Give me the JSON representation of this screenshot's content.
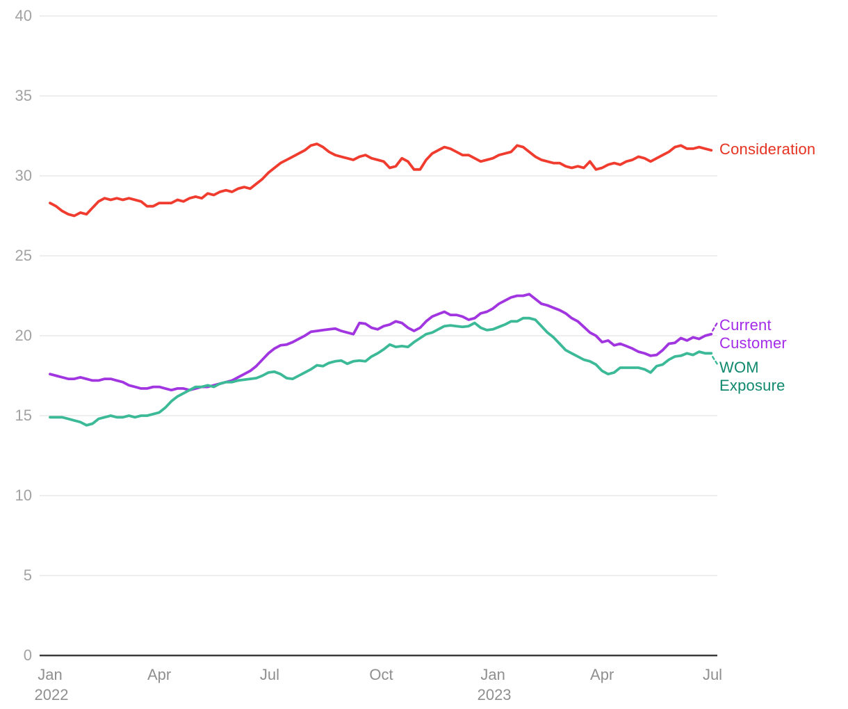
{
  "chart_data": {
    "type": "line",
    "title": "",
    "x_axis": {
      "start": "Jan 2022",
      "end": "Jul 2023",
      "total_days": 546,
      "ticks": [
        {
          "label": "Jan",
          "year": "2022",
          "day": 0
        },
        {
          "label": "Apr",
          "year": "",
          "day": 90
        },
        {
          "label": "Jul",
          "year": "",
          "day": 181
        },
        {
          "label": "Oct",
          "year": "",
          "day": 273
        },
        {
          "label": "Jan",
          "year": "2023",
          "day": 365
        },
        {
          "label": "Apr",
          "year": "",
          "day": 455
        },
        {
          "label": "Jul",
          "year": "",
          "day": 546
        }
      ]
    },
    "y_axis": {
      "min": 0,
      "max": 40,
      "ticks": [
        0,
        5,
        10,
        15,
        20,
        25,
        30,
        35,
        40
      ]
    },
    "grid": "horizontal",
    "sample_interval_days": 5,
    "series": [
      {
        "name": "Consideration",
        "line_color": "#f03c2e",
        "label_color": "#e63222",
        "values": [
          28.3,
          28.1,
          27.8,
          27.6,
          27.5,
          27.7,
          27.6,
          28.0,
          28.4,
          28.6,
          28.5,
          28.6,
          28.5,
          28.6,
          28.5,
          28.4,
          28.1,
          28.1,
          28.3,
          28.3,
          28.3,
          28.5,
          28.4,
          28.6,
          28.7,
          28.6,
          28.9,
          28.8,
          29.0,
          29.1,
          29.0,
          29.2,
          29.3,
          29.2,
          29.5,
          29.8,
          30.2,
          30.5,
          30.8,
          31.0,
          31.2,
          31.4,
          31.6,
          31.9,
          32.0,
          31.8,
          31.5,
          31.3,
          31.2,
          31.1,
          31.0,
          31.2,
          31.3,
          31.1,
          31.0,
          30.9,
          30.5,
          30.6,
          31.1,
          30.9,
          30.4,
          30.4,
          31.0,
          31.4,
          31.6,
          31.8,
          31.7,
          31.5,
          31.3,
          31.3,
          31.1,
          30.9,
          31.0,
          31.1,
          31.3,
          31.4,
          31.5,
          31.9,
          31.8,
          31.5,
          31.2,
          31.0,
          30.9,
          30.8,
          30.8,
          30.6,
          30.5,
          30.6,
          30.5,
          30.9,
          30.4,
          30.5,
          30.7,
          30.8,
          30.7,
          30.9,
          31.0,
          31.2,
          31.1,
          30.9,
          31.1,
          31.3,
          31.5,
          31.8,
          31.9,
          31.7,
          31.7,
          31.8,
          31.7,
          31.6
        ]
      },
      {
        "name": "Current Customer",
        "line_color": "#a135e0",
        "label_color": "#a32ce8",
        "values": [
          17.6,
          17.5,
          17.4,
          17.3,
          17.3,
          17.4,
          17.3,
          17.2,
          17.2,
          17.3,
          17.3,
          17.2,
          17.1,
          16.9,
          16.8,
          16.7,
          16.7,
          16.8,
          16.8,
          16.7,
          16.6,
          16.7,
          16.7,
          16.6,
          16.7,
          16.8,
          16.8,
          16.9,
          17.0,
          17.1,
          17.2,
          17.4,
          17.6,
          17.8,
          18.1,
          18.5,
          18.9,
          19.2,
          19.4,
          19.45,
          19.6,
          19.8,
          20.0,
          20.25,
          20.3,
          20.35,
          20.4,
          20.45,
          20.3,
          20.2,
          20.1,
          20.8,
          20.75,
          20.5,
          20.4,
          20.6,
          20.7,
          20.9,
          20.8,
          20.5,
          20.3,
          20.5,
          20.9,
          21.2,
          21.35,
          21.5,
          21.3,
          21.3,
          21.2,
          21.0,
          21.1,
          21.4,
          21.5,
          21.7,
          22.0,
          22.2,
          22.4,
          22.5,
          22.5,
          22.6,
          22.3,
          22.0,
          21.9,
          21.75,
          21.6,
          21.4,
          21.1,
          20.9,
          20.55,
          20.2,
          20.0,
          19.6,
          19.7,
          19.4,
          19.5,
          19.35,
          19.2,
          19.0,
          18.9,
          18.75,
          18.8,
          19.1,
          19.5,
          19.55,
          19.85,
          19.7,
          19.9,
          19.8,
          20.0,
          20.1
        ]
      },
      {
        "name": "WOM Exposure",
        "line_color": "#3cba98",
        "label_color": "#10896e",
        "values": [
          14.9,
          14.9,
          14.9,
          14.8,
          14.7,
          14.6,
          14.4,
          14.5,
          14.8,
          14.9,
          15.0,
          14.9,
          14.9,
          15.0,
          14.9,
          15.0,
          15.0,
          15.1,
          15.2,
          15.5,
          15.9,
          16.2,
          16.4,
          16.6,
          16.8,
          16.8,
          16.9,
          16.8,
          17.0,
          17.1,
          17.1,
          17.2,
          17.25,
          17.3,
          17.35,
          17.5,
          17.7,
          17.75,
          17.6,
          17.35,
          17.3,
          17.5,
          17.7,
          17.9,
          18.15,
          18.1,
          18.3,
          18.4,
          18.45,
          18.25,
          18.4,
          18.45,
          18.4,
          18.7,
          18.9,
          19.15,
          19.45,
          19.3,
          19.35,
          19.3,
          19.6,
          19.85,
          20.1,
          20.2,
          20.4,
          20.6,
          20.65,
          20.6,
          20.55,
          20.6,
          20.8,
          20.5,
          20.35,
          20.4,
          20.55,
          20.7,
          20.9,
          20.9,
          21.1,
          21.1,
          21.0,
          20.6,
          20.2,
          19.9,
          19.5,
          19.1,
          18.9,
          18.7,
          18.5,
          18.4,
          18.2,
          17.8,
          17.6,
          17.7,
          18.0,
          18.0,
          18.0,
          18.0,
          17.9,
          17.7,
          18.1,
          18.2,
          18.5,
          18.7,
          18.75,
          18.9,
          18.8,
          19.0,
          18.9,
          18.9
        ]
      }
    ],
    "style": {
      "background": "#ffffff",
      "grid_color": "#e8e8e8",
      "axis_color": "#3c3c3c",
      "y_tick_color": "#a2a2a2",
      "x_tick_color": "#8f8f8f"
    }
  }
}
